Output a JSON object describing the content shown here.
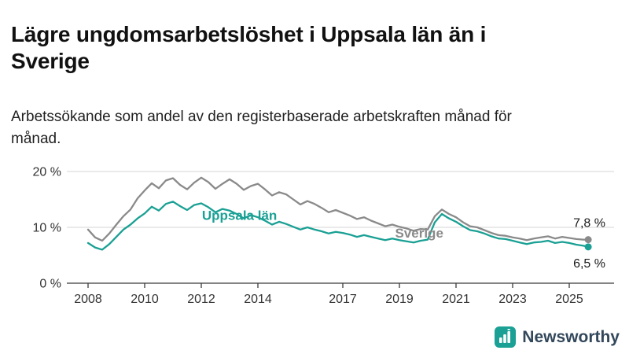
{
  "header": {
    "title": "Lägre ungdomsarbetslöshet i Uppsala län än i Sverige",
    "subtitle": "Arbetssökande som andel av den registerbaserade arbetskraften månad för månad."
  },
  "branding": {
    "name": "Newsworthy",
    "icon": "bar-chart-icon",
    "brand_color": "#1aa094",
    "text_color": "#33475b"
  },
  "chart_data": {
    "type": "line",
    "title": "Lägre ungdomsarbetslöshet i Uppsala län än i Sverige",
    "xlabel": "",
    "ylabel": "",
    "grid": true,
    "xlim": [
      2007.6,
      2026.2
    ],
    "ylim": [
      0,
      21
    ],
    "x_ticks": [
      2008,
      2010,
      2012,
      2014,
      2017,
      2019,
      2021,
      2023,
      2025
    ],
    "y_ticks": [
      0,
      10,
      20
    ],
    "y_tick_labels": [
      "0 %",
      "10 %",
      "20 %"
    ],
    "x": [
      2008,
      2008.25,
      2008.5,
      2008.75,
      2009,
      2009.25,
      2009.5,
      2009.75,
      2010,
      2010.25,
      2010.5,
      2010.75,
      2011,
      2011.25,
      2011.5,
      2011.75,
      2012,
      2012.25,
      2012.5,
      2012.75,
      2013,
      2013.25,
      2013.5,
      2013.75,
      2014,
      2014.25,
      2014.5,
      2014.75,
      2015,
      2015.25,
      2015.5,
      2015.75,
      2016,
      2016.25,
      2016.5,
      2016.75,
      2017,
      2017.25,
      2017.5,
      2017.75,
      2018,
      2018.25,
      2018.5,
      2018.75,
      2019,
      2019.25,
      2019.5,
      2019.75,
      2020,
      2020.25,
      2020.5,
      2020.75,
      2021,
      2021.25,
      2021.5,
      2021.75,
      2022,
      2022.25,
      2022.5,
      2022.75,
      2023,
      2023.25,
      2023.5,
      2023.75,
      2024,
      2024.25,
      2024.5,
      2024.75,
      2025,
      2025.25,
      2025.5,
      2025.67
    ],
    "series": [
      {
        "name": "Sverige",
        "color": "#8a8a8a",
        "end_label": "7,8 %",
        "end_label_dy": -16,
        "values": [
          9.6,
          8.2,
          7.6,
          8.9,
          10.5,
          12.0,
          13.2,
          15.2,
          16.6,
          17.9,
          17.0,
          18.4,
          18.8,
          17.6,
          16.8,
          18.0,
          18.9,
          18.1,
          16.9,
          17.8,
          18.6,
          17.8,
          16.7,
          17.4,
          17.8,
          16.8,
          15.7,
          16.3,
          15.9,
          15.0,
          14.1,
          14.7,
          14.2,
          13.5,
          12.7,
          13.1,
          12.6,
          12.1,
          11.5,
          11.8,
          11.2,
          10.7,
          10.2,
          10.5,
          10.1,
          9.8,
          9.4,
          9.7,
          9.6,
          12.0,
          13.2,
          12.4,
          11.8,
          10.9,
          10.2,
          10.0,
          9.5,
          9.0,
          8.6,
          8.5,
          8.2,
          8.0,
          7.7,
          8.0,
          8.2,
          8.4,
          8.0,
          8.3,
          8.1,
          7.9,
          7.8,
          7.8
        ]
      },
      {
        "name": "Uppsala län",
        "color": "#1aa094",
        "end_label": "6,5 %",
        "end_label_dy": 26,
        "values": [
          7.2,
          6.4,
          6.0,
          7.0,
          8.3,
          9.6,
          10.5,
          11.6,
          12.5,
          13.7,
          13.0,
          14.2,
          14.6,
          13.8,
          13.1,
          14.0,
          14.3,
          13.6,
          12.7,
          13.3,
          13.0,
          12.4,
          11.6,
          12.2,
          11.8,
          11.2,
          10.5,
          11.0,
          10.6,
          10.1,
          9.6,
          10.0,
          9.6,
          9.3,
          8.9,
          9.2,
          9.0,
          8.7,
          8.3,
          8.6,
          8.3,
          8.0,
          7.7,
          8.0,
          7.7,
          7.5,
          7.3,
          7.6,
          7.8,
          10.9,
          12.4,
          11.6,
          11.0,
          10.2,
          9.5,
          9.3,
          8.9,
          8.4,
          8.0,
          7.9,
          7.6,
          7.3,
          7.0,
          7.3,
          7.4,
          7.6,
          7.2,
          7.4,
          7.2,
          6.9,
          6.7,
          6.5
        ]
      }
    ],
    "series_labels": [
      {
        "text": "Uppsala län",
        "x": 2013.35,
        "y": 12.2,
        "color": "#1aa094"
      },
      {
        "text": "Sverige",
        "x": 2019.7,
        "y": 9.0,
        "color": "#8a8a8a"
      }
    ],
    "legend_position": "inline-labels"
  }
}
